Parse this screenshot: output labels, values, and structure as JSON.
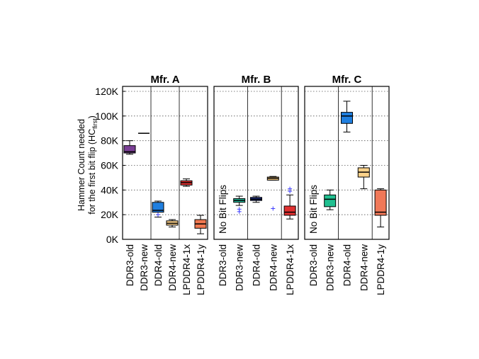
{
  "chart_data": {
    "type": "box",
    "y_label": {
      "line1": "Hammer Count needed",
      "line2": "for the first bit flip (HC",
      "subscript": "first",
      "suffix": ")"
    },
    "ylim": [
      0,
      120
    ],
    "yticks": [
      {
        "value": 0,
        "label": "0K"
      },
      {
        "value": 20,
        "label": "20K"
      },
      {
        "value": 40,
        "label": "40K"
      },
      {
        "value": 60,
        "label": "60K"
      },
      {
        "value": 80,
        "label": "80K"
      },
      {
        "value": 100,
        "label": "100K"
      },
      {
        "value": 120,
        "label": "120K"
      }
    ],
    "grid": true,
    "panels": [
      {
        "title": "Mfr. A",
        "categories": [
          "DDR3-old",
          "DDR3-new",
          "DDR4-old",
          "DDR4-new",
          "LPDDR4-1x",
          "LPDDR4-1y"
        ],
        "group_breaks": [
          2,
          4
        ],
        "colors": [
          "#7b3f96",
          null,
          "#1f7fe0",
          "#fdd28a",
          "#e03030",
          "#f07850"
        ],
        "boxes": [
          {
            "whislo": 69,
            "q1": 70,
            "med": 71,
            "q3": 76,
            "whishi": 80,
            "fliers": []
          },
          {
            "whislo": 86,
            "q1": 86,
            "med": 86,
            "q3": 86,
            "whishi": 86,
            "fliers": []
          },
          {
            "whislo": 18,
            "q1": 22,
            "med": 23.5,
            "q3": 30,
            "whishi": 31,
            "fliers": [
              20
            ]
          },
          {
            "whislo": 10,
            "q1": 11.5,
            "med": 13,
            "q3": 15,
            "whishi": 16,
            "fliers": []
          },
          {
            "whislo": 43,
            "q1": 44,
            "med": 46,
            "q3": 47.5,
            "whishi": 49,
            "fliers": []
          },
          {
            "whislo": 4.5,
            "q1": 9,
            "med": 12.5,
            "q3": 16,
            "whishi": 19.5,
            "fliers": []
          }
        ]
      },
      {
        "title": "Mfr. B",
        "categories": [
          "DDR3-old",
          "DDR3-new",
          "DDR4-old",
          "DDR4-new",
          "LPDDR4-1x"
        ],
        "group_breaks": [
          2,
          4
        ],
        "annotation": "No Bit Flips",
        "colors": [
          null,
          "#20b89a",
          "#1a2a80",
          "#fdd28a",
          "#e03030"
        ],
        "boxes": [
          null,
          {
            "whislo": 27.5,
            "q1": 30,
            "med": 31.5,
            "q3": 33,
            "whishi": 35,
            "fliers": [
              24.5,
              22.5
            ]
          },
          {
            "whislo": 30,
            "q1": 31.5,
            "med": 32.5,
            "q3": 34,
            "whishi": 35,
            "fliers": []
          },
          {
            "whislo": 48,
            "q1": 48,
            "med": 49.5,
            "q3": 50.5,
            "whishi": 51,
            "fliers": [
              25
            ]
          },
          {
            "whislo": 16.5,
            "q1": 19.5,
            "med": 22,
            "q3": 27,
            "whishi": 36,
            "fliers": [
              41,
              39
            ]
          }
        ]
      },
      {
        "title": "Mfr. C",
        "categories": [
          "DDR3-old",
          "DDR3-new",
          "DDR4-old",
          "DDR4-new",
          "LPDDR4-1y"
        ],
        "group_breaks": [
          2,
          4
        ],
        "annotation": "No Bit Flips",
        "colors": [
          null,
          "#20c090",
          "#1f7fe0",
          "#fdd28a",
          "#f07858"
        ],
        "boxes": [
          null,
          {
            "whislo": 24,
            "q1": 26.5,
            "med": 32.5,
            "q3": 36,
            "whishi": 40,
            "fliers": []
          },
          {
            "whislo": 87,
            "q1": 94,
            "med": 100,
            "q3": 103,
            "whishi": 112,
            "fliers": []
          },
          {
            "whislo": 41,
            "q1": 50.5,
            "med": 54.5,
            "q3": 58,
            "whishi": 60,
            "fliers": []
          },
          {
            "whislo": 10,
            "q1": 19.5,
            "med": 22,
            "q3": 40,
            "whishi": 41,
            "fliers": []
          }
        ]
      }
    ]
  }
}
